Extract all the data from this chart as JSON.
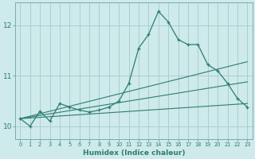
{
  "xlabel": "Humidex (Indice chaleur)",
  "bg_color": "#ceeaea",
  "line_color": "#2e7d6e",
  "grid_color": "#aacfcf",
  "xlim": [
    -0.5,
    23.5
  ],
  "ylim": [
    9.75,
    12.45
  ],
  "yticks": [
    10,
    11,
    12
  ],
  "xticks": [
    0,
    1,
    2,
    3,
    4,
    5,
    6,
    7,
    8,
    9,
    10,
    11,
    12,
    13,
    14,
    15,
    16,
    17,
    18,
    19,
    20,
    21,
    22,
    23
  ],
  "line1_x": [
    0,
    1,
    2,
    3,
    4,
    5,
    6,
    7,
    8,
    9,
    10,
    11,
    12,
    13,
    14,
    15,
    16,
    17,
    18,
    19,
    20,
    21,
    22,
    23
  ],
  "line1_y": [
    10.15,
    10.0,
    10.3,
    10.1,
    10.45,
    10.38,
    10.32,
    10.28,
    10.32,
    10.38,
    10.5,
    10.85,
    11.55,
    11.82,
    12.28,
    12.07,
    11.72,
    11.62,
    11.62,
    11.22,
    11.1,
    10.85,
    10.55,
    10.38
  ],
  "line2_x": [
    0,
    23
  ],
  "line2_y": [
    10.15,
    10.45
  ],
  "line3_x": [
    0,
    23
  ],
  "line3_y": [
    10.15,
    10.88
  ],
  "line4_x": [
    0,
    23
  ],
  "line4_y": [
    10.15,
    11.28
  ]
}
